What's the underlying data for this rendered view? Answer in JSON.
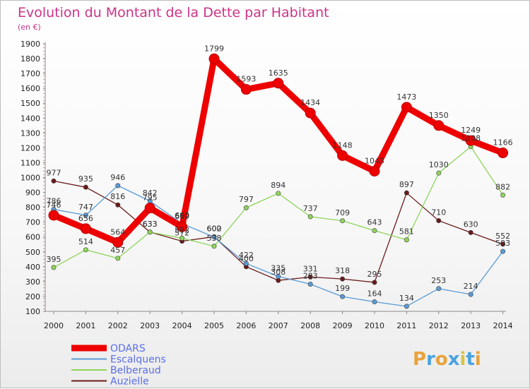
{
  "header": {
    "title": "Evolution du Montant de la Dette par Habitant",
    "unit": "(en €)"
  },
  "logo": {
    "letters": [
      "P",
      "r",
      "o",
      "x",
      "i",
      "t",
      "i"
    ],
    "colors": [
      "#e8a33b",
      "#4aa3df",
      "#e8a33b",
      "#4aa3df",
      "#d4c44a",
      "#4aa3df",
      "#e8a33b"
    ]
  },
  "chart_data": {
    "type": "line",
    "title": "Evolution du Montant de la Dette par Habitant",
    "ylabel": "(en €)",
    "xlabel": "",
    "x": [
      "2000",
      "2001",
      "2002",
      "2003",
      "2004",
      "2005",
      "2006",
      "2007",
      "2008",
      "2009",
      "2010",
      "2011",
      "2012",
      "2013",
      "2014"
    ],
    "ylim": [
      100,
      1900
    ],
    "yticks": [
      100,
      200,
      300,
      400,
      500,
      600,
      700,
      800,
      900,
      1000,
      1100,
      1200,
      1300,
      1400,
      1500,
      1600,
      1700,
      1800,
      1900
    ],
    "grid": false,
    "legend": "bottom-left",
    "series": [
      {
        "name": "Auzielle",
        "color": "#6b1a1a",
        "width": 1.3,
        "marker": 3.2,
        "values": [
          977,
          935,
          816,
          633,
          572,
          602,
          400,
          308,
          331,
          318,
          295,
          897,
          710,
          630,
          552
        ]
      },
      {
        "name": "Belberaud",
        "color": "#8fd45a",
        "width": 1.3,
        "marker": 3.2,
        "values": [
          395,
          514,
          457,
          633,
          592,
          538,
          797,
          894,
          737,
          709,
          643,
          581,
          1030,
          1208,
          882
        ]
      },
      {
        "name": "Escalquens",
        "color": "#5a9bd5",
        "width": 1.3,
        "marker": 3.2,
        "values": [
          786,
          747,
          946,
          842,
          690,
          600,
          422,
          335,
          283,
          199,
          164,
          134,
          253,
          214,
          503
        ]
      },
      {
        "name": "ODARS",
        "color": "#ee0000",
        "width": 9,
        "marker": 7,
        "values": [
          746,
          656,
          564,
          795,
          669,
          1799,
          1593,
          1635,
          1434,
          1148,
          1043,
          1473,
          1350,
          1249,
          1166
        ]
      }
    ]
  }
}
